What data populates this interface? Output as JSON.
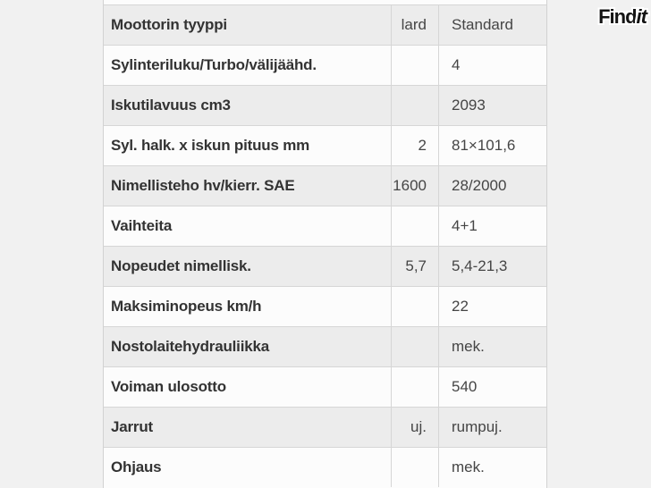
{
  "logo": {
    "text_regular": "Find",
    "text_italic": "it"
  },
  "colors": {
    "page_background": "#f1f1f1",
    "stripe_row": "#ececec",
    "plain_row": "#fcfcfc",
    "border": "#d6d6d6",
    "label_text": "#333333",
    "value_text": "#454545",
    "logo_text": "#141414",
    "logo_outline": "#ffffff"
  },
  "table": {
    "rows": [
      {
        "label": "Moottorin tyyppi",
        "col2": "lard",
        "col3": "Standard"
      },
      {
        "label": "Sylinteriluku/Turbo/välijäähd.",
        "col2": "",
        "col3": "4"
      },
      {
        "label": "Iskutilavuus cm3",
        "col2": "",
        "col3": "2093"
      },
      {
        "label": "Syl. halk. x iskun pituus mm",
        "col2": "2",
        "col3": "81×101,6"
      },
      {
        "label": "Nimellisteho hv/kierr. SAE",
        "col2": "1600",
        "col3": "28/2000"
      },
      {
        "label": "Vaihteita",
        "col2": "",
        "col3": "4+1"
      },
      {
        "label": "Nopeudet nimellisk.",
        "col2": "5,7",
        "col3": "5,4-21,3"
      },
      {
        "label": "Maksiminopeus km/h",
        "col2": "",
        "col3": "22"
      },
      {
        "label": "Nostolaitehydrauliikka",
        "col2": "",
        "col3": "mek."
      },
      {
        "label": "Voiman ulosotto",
        "col2": "",
        "col3": "540"
      },
      {
        "label": "Jarrut",
        "col2": "uj.",
        "col3": "rumpuj."
      },
      {
        "label": "Ohjaus",
        "col2": "",
        "col3": "mek."
      }
    ]
  }
}
